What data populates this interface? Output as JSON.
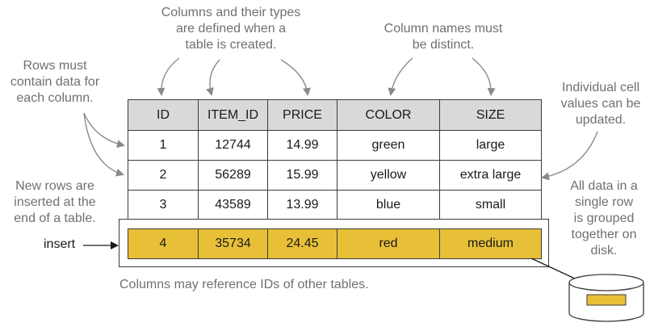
{
  "notes": {
    "columns_types": "Columns and their types\nare defined when a\ntable is created.",
    "column_names": "Column names must\nbe distinct.",
    "rows_must": "Rows must\ncontain data for\neach column.",
    "cell_values": "Individual cell\nvalues can be\nupdated.",
    "new_rows": "New rows are\ninserted at the\nend of a table.",
    "all_data": "All data in a\nsingle row\nis grouped\ntogether on\ndisk.",
    "references": "Columns may reference IDs of other tables."
  },
  "insert_label": "insert",
  "table": {
    "headers": [
      "ID",
      "ITEM_ID",
      "PRICE",
      "COLOR",
      "SIZE"
    ],
    "rows": [
      [
        "1",
        "12744",
        "14.99",
        "green",
        "large"
      ],
      [
        "2",
        "56289",
        "15.99",
        "yellow",
        "extra large"
      ],
      [
        "3",
        "43589",
        "13.99",
        "blue",
        "small"
      ]
    ],
    "new_row": [
      "4",
      "35734",
      "24.45",
      "red",
      "medium"
    ]
  },
  "colors": {
    "highlight": "#e8c038",
    "header": "#d9d9d9",
    "note_text": "#707070"
  }
}
